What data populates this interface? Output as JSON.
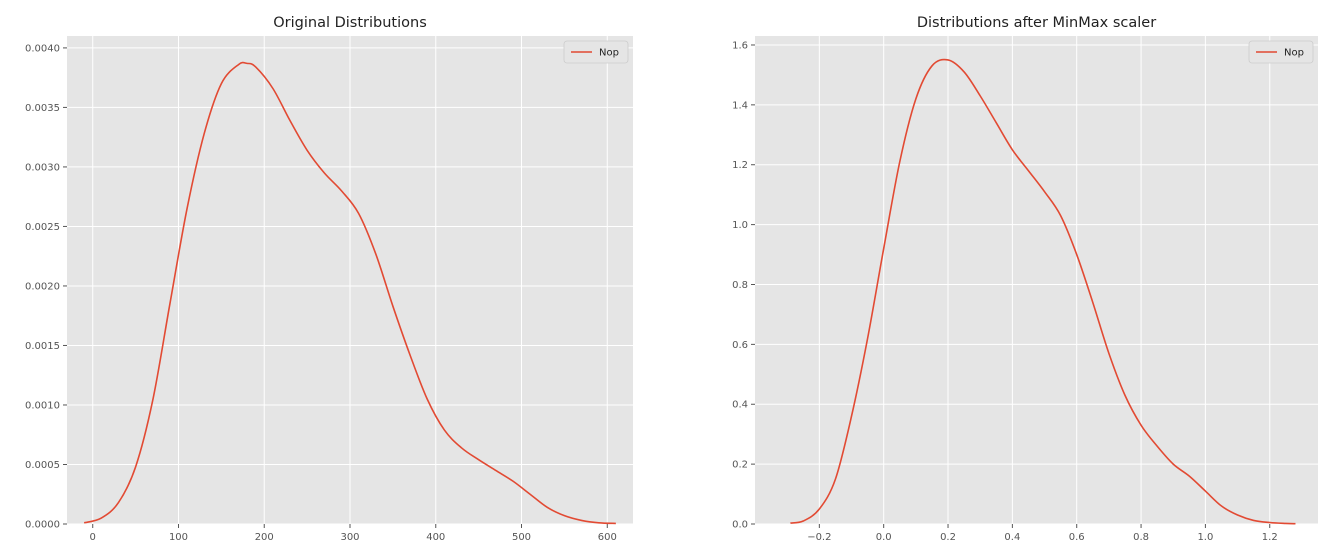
{
  "chart_data": [
    {
      "type": "line",
      "title": "Original Distributions",
      "xlabel": "",
      "ylabel": "",
      "xlim": [
        -30,
        630
      ],
      "ylim": [
        0,
        0.0041
      ],
      "xticks": [
        0,
        100,
        200,
        300,
        400,
        500,
        600
      ],
      "xtick_labels": [
        "0",
        "100",
        "200",
        "300",
        "400",
        "500",
        "600"
      ],
      "yticks": [
        0,
        0.0005,
        0.001,
        0.0015,
        0.002,
        0.0025,
        0.003,
        0.0035,
        0.004
      ],
      "ytick_labels": [
        "0.0000",
        "0.0005",
        "0.0010",
        "0.0015",
        "0.0020",
        "0.0025",
        "0.0030",
        "0.0035",
        "0.0040"
      ],
      "grid": true,
      "legend": "top-right",
      "series": [
        {
          "name": "Nop",
          "color": "#E24A33",
          "x": [
            -10,
            10,
            30,
            50,
            70,
            90,
            110,
            130,
            150,
            170,
            180,
            190,
            210,
            230,
            250,
            270,
            290,
            310,
            330,
            350,
            370,
            390,
            410,
            430,
            450,
            470,
            490,
            510,
            530,
            550,
            570,
            590,
            610
          ],
          "y": [
            1e-05,
            5e-05,
            0.00018,
            0.00048,
            0.00104,
            0.00185,
            0.00265,
            0.00328,
            0.0037,
            0.00386,
            0.00387,
            0.00384,
            0.00366,
            0.00339,
            0.00314,
            0.00295,
            0.0028,
            0.00261,
            0.00227,
            0.00183,
            0.00142,
            0.00105,
            0.00079,
            0.00064,
            0.00054,
            0.00045,
            0.00036,
            0.00025,
            0.00014,
            7e-05,
            3e-05,
            1e-05,
            5e-06
          ]
        }
      ]
    },
    {
      "type": "line",
      "title": "Distributions after MinMax scaler",
      "xlabel": "",
      "ylabel": "",
      "xlim": [
        -0.4,
        1.35
      ],
      "ylim": [
        0,
        1.63
      ],
      "xticks": [
        -0.2,
        0.0,
        0.2,
        0.4,
        0.6,
        0.8,
        1.0,
        1.2
      ],
      "xtick_labels": [
        "−0.2",
        "0.0",
        "0.2",
        "0.4",
        "0.6",
        "0.8",
        "1.0",
        "1.2"
      ],
      "yticks": [
        0,
        0.2,
        0.4,
        0.6,
        0.8,
        1.0,
        1.2,
        1.4,
        1.6
      ],
      "ytick_labels": [
        "0.0",
        "0.2",
        "0.4",
        "0.6",
        "0.8",
        "1.0",
        "1.2",
        "1.4",
        "1.6"
      ],
      "grid": true,
      "legend": "top-right",
      "series": [
        {
          "name": "Nop",
          "color": "#E24A33",
          "x": [
            -0.29,
            -0.25,
            -0.2,
            -0.15,
            -0.1,
            -0.05,
            0.0,
            0.05,
            0.1,
            0.15,
            0.2,
            0.25,
            0.3,
            0.35,
            0.4,
            0.45,
            0.5,
            0.55,
            0.6,
            0.65,
            0.7,
            0.75,
            0.8,
            0.85,
            0.9,
            0.95,
            1.0,
            1.05,
            1.1,
            1.15,
            1.2,
            1.25,
            1.28
          ],
          "y": [
            0.003,
            0.01,
            0.05,
            0.15,
            0.36,
            0.62,
            0.92,
            1.21,
            1.42,
            1.53,
            1.55,
            1.51,
            1.43,
            1.34,
            1.25,
            1.18,
            1.11,
            1.03,
            0.9,
            0.74,
            0.57,
            0.43,
            0.33,
            0.26,
            0.2,
            0.16,
            0.11,
            0.06,
            0.03,
            0.012,
            0.005,
            0.002,
            0.001
          ]
        }
      ]
    }
  ]
}
